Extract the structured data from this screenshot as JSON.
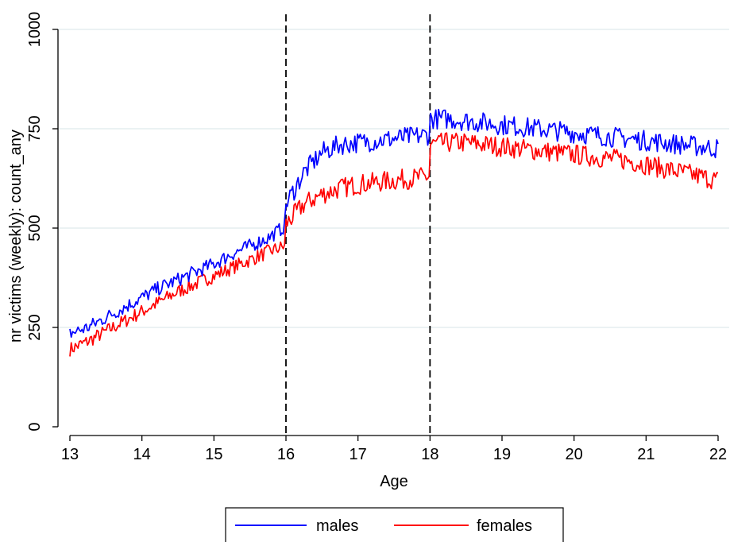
{
  "chart_data": {
    "type": "line",
    "title": "",
    "xlabel": "Age",
    "ylabel": "nr victims (weekly): count_any",
    "xlim": [
      13,
      22
    ],
    "ylim": [
      0,
      1000
    ],
    "xticks": [
      13,
      14,
      15,
      16,
      17,
      18,
      19,
      20,
      21,
      22
    ],
    "yticks": [
      0,
      250,
      500,
      750,
      1000
    ],
    "grid": "horizontal",
    "vlines": [
      16,
      18
    ],
    "legend": {
      "position": "bottom",
      "entries": [
        "males",
        "females"
      ]
    },
    "series": [
      {
        "name": "males",
        "color": "#0000ff",
        "x": [
          13.0,
          13.25,
          13.5,
          13.75,
          14.0,
          14.25,
          14.5,
          14.75,
          15.0,
          15.25,
          15.5,
          15.75,
          15.99,
          16.0,
          16.25,
          16.5,
          16.75,
          17.0,
          17.25,
          17.5,
          17.75,
          17.99,
          18.0,
          18.25,
          18.5,
          18.75,
          19.0,
          19.25,
          19.5,
          19.75,
          20.0,
          20.25,
          20.5,
          20.75,
          21.0,
          21.25,
          21.5,
          21.75,
          22.0
        ],
        "values": [
          235,
          250,
          275,
          300,
          325,
          350,
          370,
          390,
          410,
          435,
          455,
          475,
          505,
          560,
          640,
          690,
          710,
          715,
          720,
          725,
          730,
          735,
          775,
          775,
          770,
          765,
          760,
          755,
          750,
          745,
          740,
          735,
          730,
          725,
          720,
          715,
          710,
          705,
          700
        ]
      },
      {
        "name": "females",
        "color": "#ff0000",
        "x": [
          13.0,
          13.25,
          13.5,
          13.75,
          14.0,
          14.25,
          14.5,
          14.75,
          15.0,
          15.25,
          15.5,
          15.75,
          15.99,
          16.0,
          16.25,
          16.5,
          16.75,
          17.0,
          17.25,
          17.5,
          17.75,
          17.99,
          18.0,
          18.25,
          18.5,
          18.75,
          19.0,
          19.25,
          19.5,
          19.75,
          20.0,
          20.25,
          20.5,
          20.75,
          21.0,
          21.25,
          21.5,
          21.75,
          22.0
        ],
        "values": [
          195,
          215,
          240,
          265,
          290,
          315,
          340,
          360,
          380,
          400,
          420,
          440,
          455,
          510,
          560,
          585,
          600,
          610,
          615,
          620,
          625,
          630,
          710,
          715,
          715,
          710,
          705,
          700,
          695,
          690,
          685,
          680,
          675,
          670,
          660,
          650,
          640,
          630,
          620
        ]
      }
    ]
  }
}
